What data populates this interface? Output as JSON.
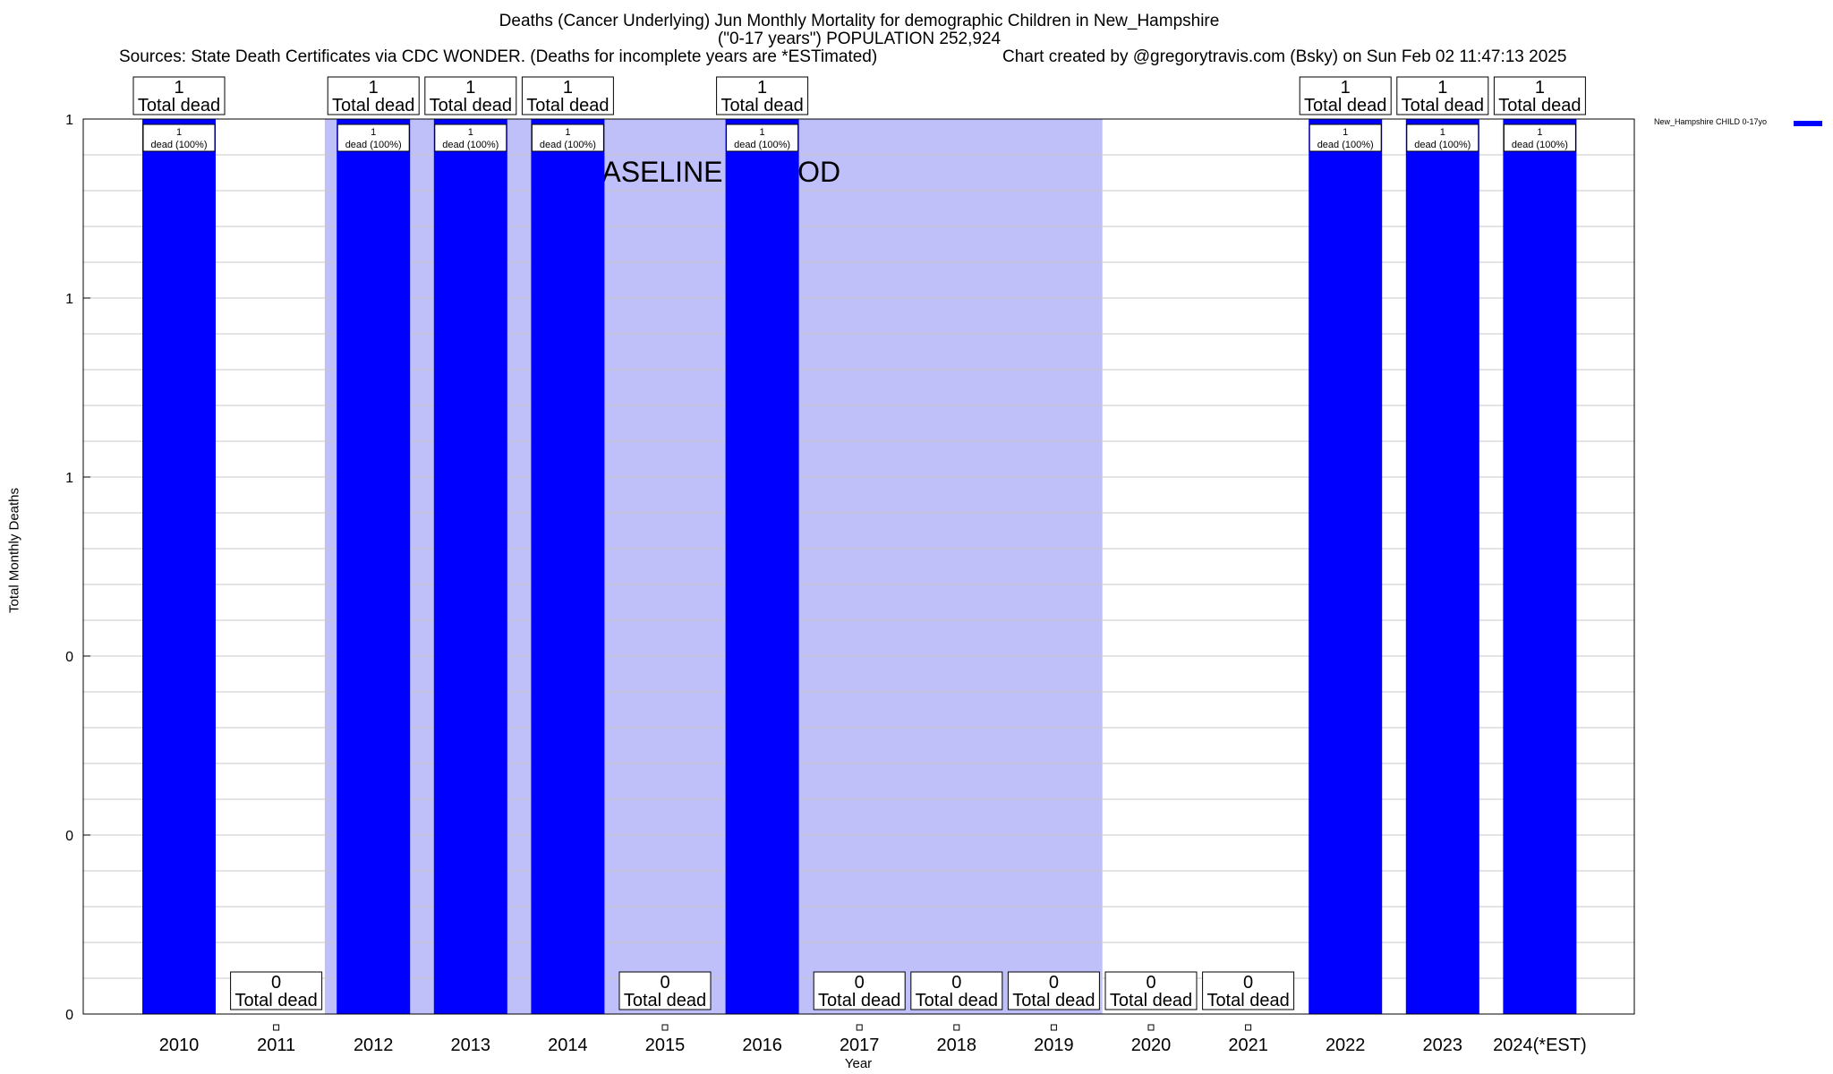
{
  "chart_data": {
    "type": "bar",
    "title_lines": [
      "Deaths (Cancer Underlying) Jun Monthly Mortality for demographic Children in New_Hampshire",
      "(\"0-17 years\") POPULATION 252,924"
    ],
    "sources": "Sources: State Death Certificates via CDC WONDER. (Deaths for incomplete years are *ESTimated)",
    "credit": "Chart created by @gregorytravis.com (Bsky) on Sun Feb 02 11:47:13 2025",
    "xlabel": "Year",
    "ylabel": "Total Monthly Deaths",
    "categories": [
      "2010",
      "2011",
      "2012",
      "2013",
      "2014",
      "2015",
      "2016",
      "2017",
      "2018",
      "2019",
      "2020",
      "2021",
      "2022",
      "2023",
      "2024(*EST)"
    ],
    "series": [
      {
        "name": "New_Hampshire CHILD 0-17yo",
        "values": [
          1,
          0,
          1,
          1,
          1,
          0,
          1,
          0,
          0,
          0,
          0,
          0,
          1,
          1,
          1
        ]
      }
    ],
    "top_labels": [
      "1",
      "0",
      "1",
      "1",
      "1",
      "0",
      "1",
      "0",
      "0",
      "0",
      "0",
      "0",
      "1",
      "1",
      "1"
    ],
    "top_label_suffix": "Total dead",
    "bar_labels": [
      "1",
      "",
      "1",
      "1",
      "1",
      "",
      "1",
      "",
      "",
      "",
      "",
      "",
      "1",
      "1",
      "1"
    ],
    "bar_label_suffix": "dead (100%)",
    "ylim": [
      0,
      1
    ],
    "ytick_values": [
      0,
      0.2,
      0.4,
      0.6,
      0.8,
      1
    ],
    "ytick_labels": [
      "0",
      "0",
      "0",
      "1",
      "1",
      "1"
    ],
    "baseline": {
      "label": "BASELINE PERIOD",
      "from_category": "2012",
      "to_category": "2019"
    },
    "legend_position": "top-right",
    "grid": true,
    "colors": {
      "bar": "#0000ff",
      "baseline": "#bfbffa",
      "grid": "#c8c8c8"
    }
  }
}
